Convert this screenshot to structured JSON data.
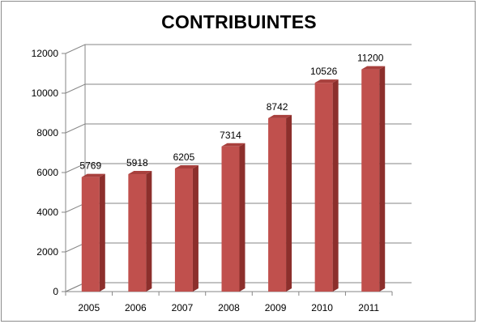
{
  "chart_data": {
    "type": "bar",
    "title": "CONTRIBUINTES",
    "categories": [
      "2005",
      "2006",
      "2007",
      "2008",
      "2009",
      "2010",
      "2011"
    ],
    "values": [
      5769,
      5918,
      6205,
      7314,
      8742,
      10526,
      11200
    ],
    "data_labels": [
      "5769",
      "5918",
      "6205",
      "7314",
      "8742",
      "10526",
      "11200"
    ],
    "yticks": [
      "0",
      "2000",
      "4000",
      "6000",
      "8000",
      "10000",
      "12000"
    ],
    "ylim": [
      0,
      12000
    ],
    "grid": true,
    "legend": "none",
    "style": "3d-column",
    "bar_color": "#c0504d"
  }
}
